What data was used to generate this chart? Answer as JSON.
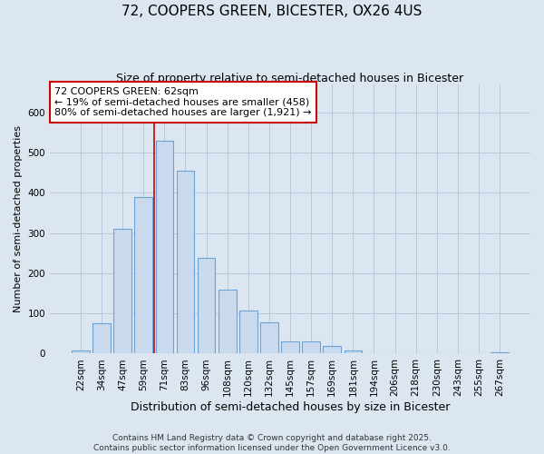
{
  "title": "72, COOPERS GREEN, BICESTER, OX26 4US",
  "subtitle": "Size of property relative to semi-detached houses in Bicester",
  "xlabel": "Distribution of semi-detached houses by size in Bicester",
  "ylabel": "Number of semi-detached properties",
  "categories": [
    "22sqm",
    "34sqm",
    "47sqm",
    "59sqm",
    "71sqm",
    "83sqm",
    "96sqm",
    "108sqm",
    "120sqm",
    "132sqm",
    "145sqm",
    "157sqm",
    "169sqm",
    "181sqm",
    "194sqm",
    "206sqm",
    "218sqm",
    "230sqm",
    "243sqm",
    "255sqm",
    "267sqm"
  ],
  "values": [
    8,
    75,
    310,
    390,
    530,
    455,
    238,
    160,
    108,
    78,
    30,
    30,
    20,
    7,
    0,
    0,
    0,
    0,
    0,
    0,
    4
  ],
  "bar_color": "#c9d9ee",
  "bar_edge_color": "#6ba3d6",
  "grid_color": "#b8c8dc",
  "background_color": "#dce6f1",
  "vline_x_index": 3.5,
  "vline_color": "#cc0000",
  "annotation_line1": "72 COOPERS GREEN: 62sqm",
  "annotation_line2": "← 19% of semi-detached houses are smaller (458)",
  "annotation_line3": "80% of semi-detached houses are larger (1,921) →",
  "annotation_box_color": "#ffffff",
  "annotation_edge_color": "#cc0000",
  "footer": "Contains HM Land Registry data © Crown copyright and database right 2025.\nContains public sector information licensed under the Open Government Licence v3.0.",
  "ylim": [
    0,
    670
  ],
  "title_fontsize": 11,
  "subtitle_fontsize": 9,
  "ylabel_fontsize": 8,
  "xlabel_fontsize": 9,
  "tick_fontsize": 7.5,
  "footer_fontsize": 6.5,
  "annotation_fontsize": 8
}
